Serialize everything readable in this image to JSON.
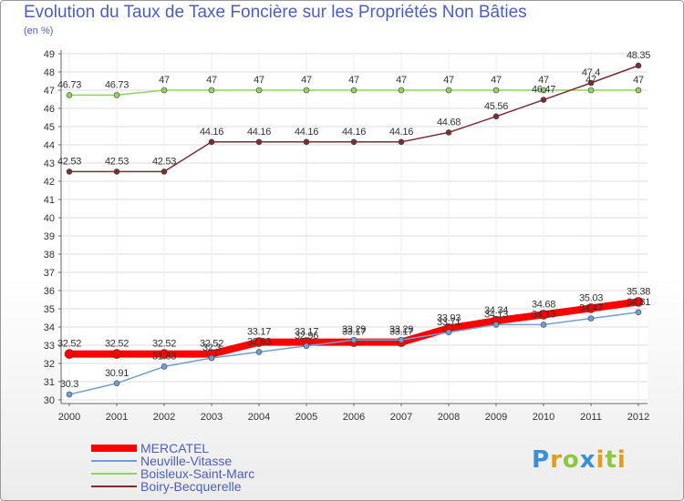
{
  "title": "Evolution du Taux de Taxe Foncière sur les Propriétés Non Bâties",
  "subtitle": "(en %)",
  "logo": {
    "p": "P",
    "r": "r",
    "o": "o",
    "x": "x",
    "i1": "i",
    "t": "t",
    "i2": "i"
  },
  "colors": {
    "mercatel": "#ff0000",
    "neuville": "#6f9fd6",
    "boisleux": "#8fd55c",
    "boiry": "#7a2d33",
    "text": "#4a5fc1",
    "grid": "#dddddd",
    "axis": "#666666"
  },
  "chart_data": {
    "type": "line",
    "title": "Evolution du Taux de Taxe Foncière sur les Propriétés Non Bâties",
    "ylabel": "(en %)",
    "xlabel": "",
    "ylim": [
      30,
      49
    ],
    "yticks": [
      "30",
      "31",
      "32",
      "33",
      "34",
      "35",
      "36",
      "37",
      "38",
      "39",
      "40",
      "41",
      "42",
      "43",
      "44",
      "45",
      "46",
      "47",
      "48",
      "49"
    ],
    "x": [
      "2000",
      "2001",
      "2002",
      "2003",
      "2004",
      "2005",
      "2006",
      "2007",
      "2008",
      "2009",
      "2010",
      "2011",
      "2012"
    ],
    "grid": true,
    "legend_position": "bottom-left",
    "series": [
      {
        "name": "MERCATEL",
        "key": "mercatel",
        "values": [
          32.52,
          32.52,
          32.52,
          32.52,
          33.17,
          33.17,
          33.17,
          33.17,
          33.93,
          34.34,
          34.68,
          35.03,
          35.38
        ],
        "labels": [
          "32.52",
          "32.52",
          "32.52",
          "32.52",
          "33.17",
          "33.17",
          "33.17",
          "33.17",
          "33.93",
          "34.34",
          "34.68",
          "35.03",
          "35.38"
        ]
      },
      {
        "name": "Neuville-Vitasse",
        "key": "neuville",
        "values": [
          30.3,
          30.91,
          31.83,
          32.3,
          32.63,
          32.96,
          33.29,
          33.29,
          33.71,
          34.13,
          34.13,
          34.47,
          34.81
        ],
        "labels": [
          "30.3",
          "30.91",
          "31.83",
          "32.3",
          "32.63",
          "32.96",
          "33.29",
          "33.29",
          "33.71",
          "34.13",
          "34.13",
          "34.47",
          "34.81"
        ]
      },
      {
        "name": "Boisleux-Saint-Marc",
        "key": "boisleux",
        "values": [
          46.73,
          46.73,
          47,
          47,
          47,
          47,
          47,
          47,
          47,
          47,
          47,
          47,
          47
        ],
        "labels": [
          "46.73",
          "46.73",
          "47",
          "47",
          "47",
          "47",
          "47",
          "47",
          "47",
          "47",
          "47",
          "47",
          "47"
        ]
      },
      {
        "name": "Boiry-Becquerelle",
        "key": "boiry",
        "values": [
          42.53,
          42.53,
          42.53,
          44.16,
          44.16,
          44.16,
          44.16,
          44.16,
          44.68,
          45.56,
          46.47,
          47.4,
          48.35
        ],
        "labels": [
          "42.53",
          "42.53",
          "42.53",
          "44.16",
          "44.16",
          "44.16",
          "44.16",
          "44.16",
          "44.68",
          "45.56",
          "46.47",
          "47.4",
          "48.35"
        ]
      }
    ]
  }
}
